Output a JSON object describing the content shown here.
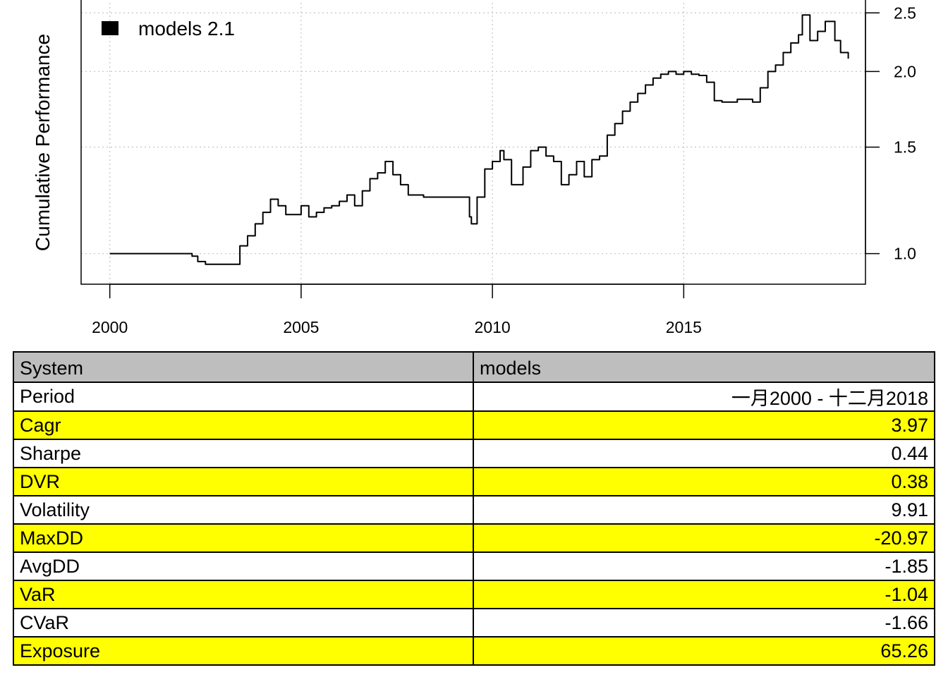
{
  "chart_data": {
    "type": "line",
    "title": "",
    "xlabel": "",
    "ylabel": "Cumulative Performance",
    "y_scale": "log",
    "xlim": [
      1999.25,
      2019.75
    ],
    "ylim": [
      0.89,
      2.64
    ],
    "x_ticks": [
      2000,
      2005,
      2010,
      2015
    ],
    "x_tick_labels": [
      "2000",
      "2005",
      "2010",
      "2015"
    ],
    "y_ticks": [
      1.0,
      1.5,
      2.0,
      2.5
    ],
    "y_tick_labels": [
      "1.0",
      "1.5",
      "2.0",
      "2.5"
    ],
    "y_axis_side": "right",
    "grid": true,
    "legend": {
      "position": "top-left",
      "entries": [
        "models 2.1"
      ]
    },
    "series": [
      {
        "name": "models 2.1",
        "color": "#000000",
        "x": [
          2000.0,
          2000.5,
          2001.0,
          2001.5,
          2002.0,
          2002.15,
          2002.3,
          2002.5,
          2003.0,
          2003.3,
          2003.4,
          2003.6,
          2003.8,
          2004.0,
          2004.2,
          2004.4,
          2004.6,
          2004.8,
          2005.0,
          2005.2,
          2005.4,
          2005.6,
          2005.8,
          2006.0,
          2006.2,
          2006.4,
          2006.6,
          2006.8,
          2007.0,
          2007.2,
          2007.4,
          2007.6,
          2007.8,
          2008.0,
          2008.2,
          2008.5,
          2009.0,
          2009.3,
          2009.4,
          2009.45,
          2009.6,
          2009.8,
          2010.0,
          2010.2,
          2010.3,
          2010.5,
          2010.6,
          2010.8,
          2011.0,
          2011.2,
          2011.4,
          2011.6,
          2011.8,
          2012.0,
          2012.2,
          2012.4,
          2012.6,
          2012.8,
          2013.0,
          2013.2,
          2013.4,
          2013.6,
          2013.8,
          2014.0,
          2014.2,
          2014.4,
          2014.6,
          2014.8,
          2015.0,
          2015.2,
          2015.4,
          2015.6,
          2015.8,
          2016.0,
          2016.2,
          2016.4,
          2016.6,
          2016.8,
          2017.0,
          2017.2,
          2017.4,
          2017.6,
          2017.8,
          2018.0,
          2018.1,
          2018.3,
          2018.5,
          2018.7,
          2018.85,
          2018.95,
          2019.1,
          2019.3
        ],
        "values": [
          1.0,
          1.0,
          1.0,
          1.0,
          1.0,
          0.99,
          0.97,
          0.96,
          0.96,
          0.96,
          1.03,
          1.07,
          1.12,
          1.17,
          1.23,
          1.2,
          1.16,
          1.16,
          1.2,
          1.15,
          1.17,
          1.19,
          1.2,
          1.22,
          1.25,
          1.2,
          1.27,
          1.33,
          1.36,
          1.42,
          1.35,
          1.3,
          1.25,
          1.25,
          1.24,
          1.24,
          1.24,
          1.24,
          1.15,
          1.12,
          1.24,
          1.38,
          1.42,
          1.48,
          1.43,
          1.3,
          1.3,
          1.39,
          1.48,
          1.5,
          1.45,
          1.42,
          1.3,
          1.35,
          1.42,
          1.34,
          1.43,
          1.45,
          1.57,
          1.64,
          1.72,
          1.78,
          1.84,
          1.9,
          1.95,
          1.98,
          2.0,
          1.98,
          2.0,
          1.98,
          1.97,
          1.92,
          1.79,
          1.78,
          1.78,
          1.8,
          1.8,
          1.78,
          1.88,
          2.0,
          2.05,
          2.15,
          2.23,
          2.3,
          2.48,
          2.25,
          2.33,
          2.42,
          2.42,
          2.25,
          2.15,
          2.1
        ]
      }
    ]
  },
  "table": {
    "header": [
      "System",
      "models"
    ],
    "rows": [
      {
        "metric": "Period",
        "value": "一月2000 - 十二月2018",
        "highlight": false
      },
      {
        "metric": "Cagr",
        "value": "3.97",
        "highlight": true
      },
      {
        "metric": "Sharpe",
        "value": "0.44",
        "highlight": false
      },
      {
        "metric": "DVR",
        "value": "0.38",
        "highlight": true
      },
      {
        "metric": "Volatility",
        "value": "9.91",
        "highlight": false
      },
      {
        "metric": "MaxDD",
        "value": "-20.97",
        "highlight": true
      },
      {
        "metric": "AvgDD",
        "value": "-1.85",
        "highlight": false
      },
      {
        "metric": "VaR",
        "value": "-1.04",
        "highlight": true
      },
      {
        "metric": "CVaR",
        "value": "-1.66",
        "highlight": false
      },
      {
        "metric": "Exposure",
        "value": "65.26",
        "highlight": true
      }
    ],
    "highlight_color": "#ffff00",
    "header_color": "#bebebe"
  }
}
